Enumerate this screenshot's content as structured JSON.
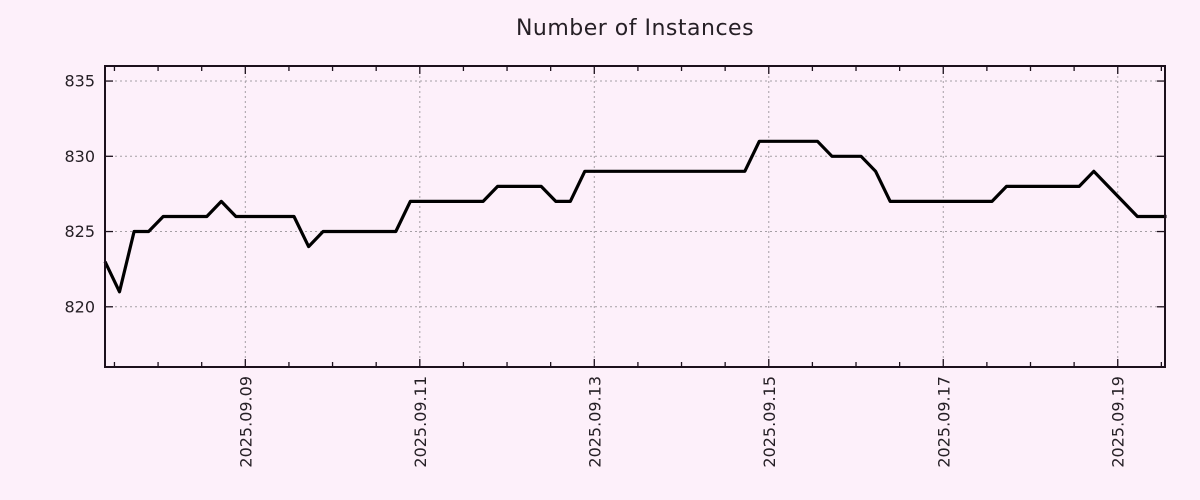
{
  "chart_data": {
    "type": "line",
    "title": "Number of Instances",
    "xlabel": "",
    "ylabel": "",
    "legend": "none",
    "grid": true,
    "x_unit_hours_per_point": 4,
    "x_start_hours": 0,
    "xlim_hours": [
      0,
      291.6
    ],
    "ylim": [
      816,
      836
    ],
    "y_ticks": [
      820,
      825,
      830,
      835
    ],
    "x_major_ticks": [
      {
        "hours": 38.6,
        "label": "2025.09.09"
      },
      {
        "hours": 86.6,
        "label": "2025.09.11"
      },
      {
        "hours": 134.6,
        "label": "2025.09.13"
      },
      {
        "hours": 182.6,
        "label": "2025.09.15"
      },
      {
        "hours": 230.6,
        "label": "2025.09.17"
      },
      {
        "hours": 278.6,
        "label": "2025.09.19"
      }
    ],
    "x_minor_ticks": {
      "start_hours": 2.6,
      "step_hours": 12
    },
    "series": [
      {
        "name": "Number of Instances",
        "values": [
          823,
          821,
          825,
          825,
          826,
          826,
          826,
          826,
          827,
          826,
          826,
          826,
          826,
          826,
          824,
          825,
          825,
          825,
          825,
          825,
          825,
          827,
          827,
          827,
          827,
          827,
          827,
          828,
          828,
          828,
          828,
          827,
          827,
          829,
          829,
          829,
          829,
          829,
          829,
          829,
          829,
          829,
          829,
          829,
          829,
          831,
          831,
          831,
          831,
          831,
          830,
          830,
          830,
          829,
          827,
          827,
          827,
          827,
          827,
          827,
          827,
          827,
          828,
          828,
          828,
          828,
          828,
          828,
          829,
          828,
          827,
          826,
          826,
          826
        ]
      }
    ]
  },
  "colors": {
    "background": "#fdf0fa",
    "line": "#000000",
    "grid": "#a59fa5",
    "axis": "#1c101c",
    "text": "#262026"
  }
}
